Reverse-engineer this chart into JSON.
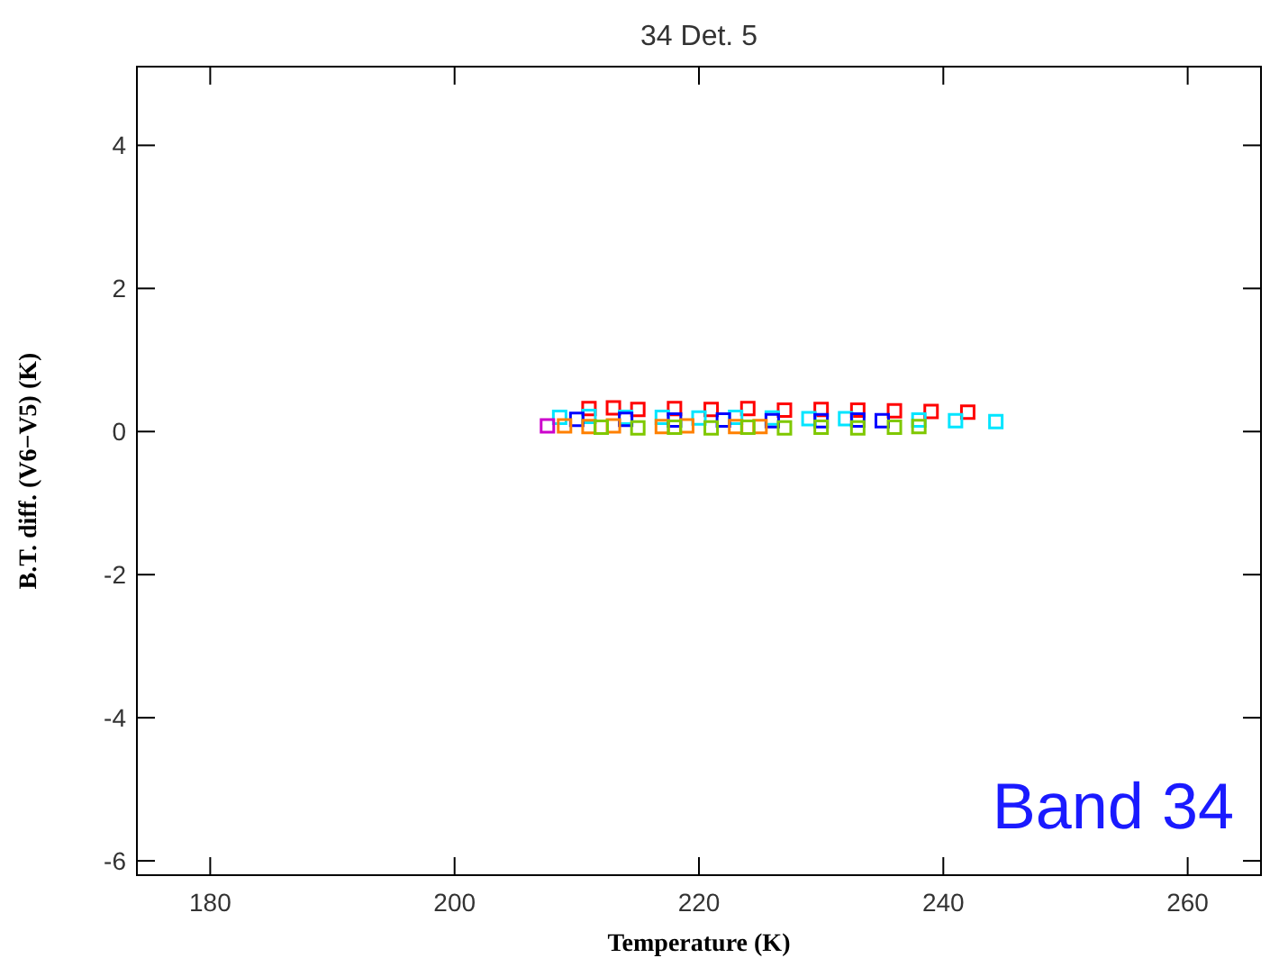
{
  "chart_data": {
    "type": "scatter",
    "title": "34 Det. 5",
    "xlabel": "Temperature (K)",
    "ylabel": "B.T. diff. (V6−V5) (K)",
    "xlim": [
      174,
      266
    ],
    "ylim": [
      -6.2,
      5.1
    ],
    "xticks": [
      180,
      200,
      220,
      240,
      260
    ],
    "yticks": [
      -6,
      -4,
      -2,
      0,
      2,
      4
    ],
    "marker": "square",
    "grid": false,
    "annotations": [
      "Band 34"
    ],
    "series": [
      {
        "color": "#ff0000",
        "x": [
          211,
          213,
          215,
          218,
          221,
          224,
          227,
          230,
          233,
          236,
          239,
          242
        ],
        "values": [
          0.32,
          0.33,
          0.31,
          0.32,
          0.31,
          0.32,
          0.3,
          0.31,
          0.3,
          0.29,
          0.28,
          0.27
        ]
      },
      {
        "color": "#00e5ff",
        "x": [
          208.6,
          211,
          214,
          217,
          220,
          223,
          226,
          229,
          232,
          238,
          241,
          244.3
        ],
        "values": [
          0.2,
          0.21,
          0.2,
          0.2,
          0.19,
          0.2,
          0.19,
          0.18,
          0.18,
          0.16,
          0.15,
          0.14
        ]
      },
      {
        "color": "#0000ff",
        "x": [
          210,
          214,
          218,
          222,
          226,
          230,
          233,
          235
        ],
        "values": [
          0.17,
          0.17,
          0.16,
          0.16,
          0.15,
          0.15,
          0.16,
          0.15
        ]
      },
      {
        "color": "#ff8000",
        "x": [
          209,
          211,
          213,
          217,
          219,
          223,
          225
        ],
        "values": [
          0.08,
          0.07,
          0.08,
          0.07,
          0.08,
          0.07,
          0.07
        ]
      },
      {
        "color": "#7fc800",
        "x": [
          212,
          215,
          218,
          221,
          224,
          227,
          230,
          233,
          236,
          238
        ],
        "values": [
          0.06,
          0.05,
          0.06,
          0.05,
          0.06,
          0.05,
          0.06,
          0.05,
          0.06,
          0.07
        ]
      },
      {
        "color": "#cc00cc",
        "x": [
          207.6
        ],
        "values": [
          0.08
        ]
      }
    ]
  }
}
